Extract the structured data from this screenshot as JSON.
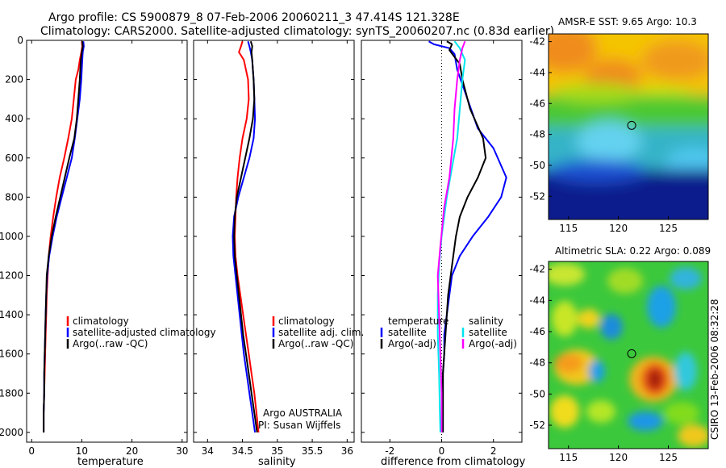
{
  "title_line1": "Argo profile: CS 5900879_8 07-Feb-2006 20060211_3 47.414S 121.328E",
  "title_line2": "Climatology: CARS2000. Satellite-adjusted climatology: synTS_20060207.nc (0.83d earlier)",
  "side_label": "CSIRO 13-Feb-2006 08:32:28",
  "colors": {
    "climatology": "#ff0000",
    "satellite": "#0000ff",
    "argo": "#000000",
    "sat_salinity": "#00e5ee",
    "argo_salinity": "#ff00ff"
  },
  "chart_data": [
    {
      "type": "line",
      "xlabel": "temperature",
      "xlim": [
        -1,
        31
      ],
      "ylim": [
        0,
        2050
      ],
      "y_reversed": true,
      "xticks": [
        0,
        10,
        20,
        30
      ],
      "yticks": [
        0,
        200,
        400,
        600,
        800,
        1000,
        1200,
        1400,
        1600,
        1800,
        2000
      ],
      "legend": [
        "climatology",
        "satellite-adjusted climatology",
        "Argo(..raw -QC)"
      ],
      "series": [
        {
          "name": "climatology",
          "color": "#ff0000",
          "points": [
            [
              10.0,
              5
            ],
            [
              10.1,
              30
            ],
            [
              9.9,
              60
            ],
            [
              9.6,
              100
            ],
            [
              9.3,
              150
            ],
            [
              8.8,
              200
            ],
            [
              8.4,
              300
            ],
            [
              8.0,
              400
            ],
            [
              7.3,
              500
            ],
            [
              6.5,
              600
            ],
            [
              5.6,
              700
            ],
            [
              4.9,
              800
            ],
            [
              4.3,
              900
            ],
            [
              3.8,
              1000
            ],
            [
              3.4,
              1100
            ],
            [
              3.2,
              1200
            ],
            [
              3.0,
              1300
            ],
            [
              2.9,
              1400
            ],
            [
              2.8,
              1500
            ],
            [
              2.7,
              1600
            ],
            [
              2.6,
              1700
            ],
            [
              2.5,
              1800
            ],
            [
              2.4,
              1900
            ],
            [
              2.4,
              2000
            ]
          ]
        },
        {
          "name": "satellite-adjusted climatology",
          "color": "#0000ff",
          "points": [
            [
              10.3,
              5
            ],
            [
              10.4,
              30
            ],
            [
              10.2,
              60
            ],
            [
              10.1,
              100
            ],
            [
              10.0,
              150
            ],
            [
              9.9,
              200
            ],
            [
              9.6,
              300
            ],
            [
              9.1,
              400
            ],
            [
              8.6,
              500
            ],
            [
              8.0,
              600
            ],
            [
              7.0,
              700
            ],
            [
              6.0,
              800
            ],
            [
              5.0,
              900
            ],
            [
              4.2,
              1000
            ],
            [
              3.5,
              1100
            ],
            [
              3.1,
              1200
            ],
            [
              2.9,
              1300
            ],
            [
              2.8,
              1400
            ],
            [
              2.7,
              1500
            ],
            [
              2.6,
              1600
            ],
            [
              2.5,
              1700
            ],
            [
              2.5,
              1800
            ],
            [
              2.4,
              1900
            ],
            [
              2.4,
              2000
            ]
          ]
        },
        {
          "name": "Argo(..raw -QC)",
          "color": "#000000",
          "points": [
            [
              10.1,
              5
            ],
            [
              10.2,
              30
            ],
            [
              10.0,
              60
            ],
            [
              9.8,
              100
            ],
            [
              9.7,
              150
            ],
            [
              9.6,
              200
            ],
            [
              9.3,
              300
            ],
            [
              9.0,
              400
            ],
            [
              8.5,
              500
            ],
            [
              7.5,
              600
            ],
            [
              6.6,
              700
            ],
            [
              5.7,
              800
            ],
            [
              4.8,
              900
            ],
            [
              4.0,
              1000
            ],
            [
              3.4,
              1100
            ],
            [
              3.0,
              1200
            ],
            [
              2.9,
              1300
            ],
            [
              2.8,
              1400
            ],
            [
              2.7,
              1500
            ],
            [
              2.6,
              1600
            ],
            [
              2.5,
              1700
            ],
            [
              2.5,
              1800
            ],
            [
              2.4,
              1900
            ],
            [
              2.4,
              2000
            ]
          ]
        }
      ]
    },
    {
      "type": "line",
      "xlabel": "salinity",
      "xlim": [
        33.8,
        36.1
      ],
      "ylim": [
        0,
        2050
      ],
      "y_reversed": true,
      "xticks": [
        34,
        34.5,
        35,
        35.5,
        36
      ],
      "xticklabels": [
        "34",
        "34.5",
        "35",
        "35.5",
        "36"
      ],
      "legend": [
        "climatology",
        "satellite adj. clim.",
        "Argo(..raw -QC)"
      ],
      "annotations": [
        "Argo AUSTRALIA",
        "PI: Susan Wijffels"
      ],
      "series": [
        {
          "name": "climatology",
          "color": "#ff0000",
          "points": [
            [
              34.5,
              5
            ],
            [
              34.48,
              30
            ],
            [
              34.45,
              60
            ],
            [
              34.52,
              100
            ],
            [
              34.55,
              150
            ],
            [
              34.58,
              200
            ],
            [
              34.59,
              300
            ],
            [
              34.56,
              400
            ],
            [
              34.5,
              500
            ],
            [
              34.46,
              600
            ],
            [
              34.43,
              700
            ],
            [
              34.41,
              800
            ],
            [
              34.4,
              900
            ],
            [
              34.39,
              1000
            ],
            [
              34.4,
              1100
            ],
            [
              34.43,
              1200
            ],
            [
              34.47,
              1300
            ],
            [
              34.51,
              1400
            ],
            [
              34.55,
              1500
            ],
            [
              34.59,
              1600
            ],
            [
              34.63,
              1700
            ],
            [
              34.67,
              1800
            ],
            [
              34.7,
              1900
            ],
            [
              34.73,
              2000
            ]
          ]
        },
        {
          "name": "satellite adj. clim.",
          "color": "#0000ff",
          "points": [
            [
              34.58,
              5
            ],
            [
              34.6,
              30
            ],
            [
              34.62,
              60
            ],
            [
              34.64,
              100
            ],
            [
              34.65,
              150
            ],
            [
              34.66,
              200
            ],
            [
              34.67,
              300
            ],
            [
              34.68,
              400
            ],
            [
              34.66,
              500
            ],
            [
              34.6,
              600
            ],
            [
              34.52,
              700
            ],
            [
              34.44,
              800
            ],
            [
              34.38,
              900
            ],
            [
              34.36,
              1000
            ],
            [
              34.37,
              1100
            ],
            [
              34.4,
              1200
            ],
            [
              34.43,
              1300
            ],
            [
              34.46,
              1400
            ],
            [
              34.49,
              1500
            ],
            [
              34.52,
              1600
            ],
            [
              34.56,
              1700
            ],
            [
              34.6,
              1800
            ],
            [
              34.64,
              1900
            ],
            [
              34.68,
              2000
            ]
          ]
        },
        {
          "name": "Argo(..raw -QC)",
          "color": "#000000",
          "points": [
            [
              34.62,
              5
            ],
            [
              34.64,
              30
            ],
            [
              34.63,
              60
            ],
            [
              34.64,
              100
            ],
            [
              34.65,
              150
            ],
            [
              34.66,
              200
            ],
            [
              34.67,
              300
            ],
            [
              34.65,
              400
            ],
            [
              34.6,
              500
            ],
            [
              34.54,
              600
            ],
            [
              34.48,
              700
            ],
            [
              34.42,
              800
            ],
            [
              34.39,
              900
            ],
            [
              34.38,
              1000
            ],
            [
              34.39,
              1100
            ],
            [
              34.42,
              1200
            ],
            [
              34.45,
              1300
            ],
            [
              34.48,
              1400
            ],
            [
              34.51,
              1500
            ],
            [
              34.55,
              1600
            ],
            [
              34.59,
              1700
            ],
            [
              34.63,
              1800
            ],
            [
              34.67,
              1900
            ],
            [
              34.71,
              2000
            ]
          ]
        }
      ]
    },
    {
      "type": "line",
      "xlabel": "difference from climatology",
      "xlim": [
        -3.1,
        3.1
      ],
      "ylim": [
        0,
        2050
      ],
      "y_reversed": true,
      "xticks": [
        -2,
        0,
        2
      ],
      "zero_line": true,
      "legend_groups": [
        {
          "title": "temperature",
          "items": [
            "satellite",
            "Argo(-adj)"
          ]
        },
        {
          "title": "salinity",
          "items": [
            "satellite",
            "Argo(-adj)"
          ]
        }
      ],
      "series": [
        {
          "name": "temperature satellite",
          "color": "#0000ff",
          "points": [
            [
              -0.5,
              5
            ],
            [
              -0.3,
              20
            ],
            [
              0.3,
              40
            ],
            [
              0.5,
              70
            ],
            [
              0.6,
              150
            ],
            [
              1.0,
              300
            ],
            [
              1.4,
              450
            ],
            [
              2.0,
              550
            ],
            [
              2.5,
              700
            ],
            [
              2.3,
              800
            ],
            [
              1.8,
              900
            ],
            [
              1.2,
              1000
            ],
            [
              0.7,
              1100
            ],
            [
              0.4,
              1200
            ],
            [
              0.3,
              1300
            ],
            [
              0.2,
              1400
            ],
            [
              0.1,
              1500
            ],
            [
              0.1,
              1600
            ],
            [
              0.05,
              1700
            ],
            [
              0.05,
              1800
            ],
            [
              0.05,
              1900
            ],
            [
              0.05,
              2000
            ]
          ]
        },
        {
          "name": "temperature Argo(-adj)",
          "color": "#000000",
          "points": [
            [
              0.2,
              5
            ],
            [
              0.4,
              20
            ],
            [
              0.3,
              50
            ],
            [
              0.7,
              120
            ],
            [
              0.8,
              200
            ],
            [
              1.1,
              350
            ],
            [
              1.6,
              500
            ],
            [
              1.7,
              600
            ],
            [
              1.4,
              700
            ],
            [
              1.0,
              800
            ],
            [
              0.7,
              900
            ],
            [
              0.55,
              1000
            ],
            [
              0.45,
              1100
            ],
            [
              0.35,
              1200
            ],
            [
              0.25,
              1300
            ],
            [
              0.2,
              1400
            ],
            [
              0.15,
              1500
            ],
            [
              0.1,
              1600
            ],
            [
              0.05,
              1700
            ],
            [
              0.05,
              1800
            ],
            [
              0.05,
              1900
            ],
            [
              0.05,
              2000
            ]
          ]
        },
        {
          "name": "salinity satellite",
          "color": "#00e5ee",
          "points": [
            [
              0.5,
              5
            ],
            [
              0.7,
              40
            ],
            [
              0.9,
              100
            ],
            [
              0.8,
              200
            ],
            [
              0.7,
              350
            ],
            [
              0.6,
              500
            ],
            [
              0.4,
              650
            ],
            [
              0.2,
              800
            ],
            [
              0.0,
              1000
            ],
            [
              -0.1,
              1150
            ],
            [
              -0.15,
              1300
            ],
            [
              -0.15,
              1500
            ],
            [
              -0.1,
              1700
            ],
            [
              -0.07,
              1900
            ],
            [
              -0.05,
              2000
            ]
          ]
        },
        {
          "name": "salinity Argo(-adj)",
          "color": "#ff00ff",
          "points": [
            [
              0.9,
              5
            ],
            [
              0.8,
              40
            ],
            [
              0.7,
              100
            ],
            [
              0.6,
              200
            ],
            [
              0.5,
              350
            ],
            [
              0.45,
              500
            ],
            [
              0.3,
              700
            ],
            [
              0.1,
              850
            ],
            [
              -0.05,
              1050
            ],
            [
              -0.15,
              1200
            ],
            [
              -0.1,
              1400
            ],
            [
              -0.05,
              1600
            ],
            [
              0.0,
              1800
            ],
            [
              0.0,
              2000
            ]
          ]
        }
      ]
    },
    {
      "type": "heatmap",
      "title": "AMSR-E SST: 9.65 Argo: 10.3",
      "xlim": [
        113,
        129
      ],
      "ylim": [
        -53.5,
        -41.5
      ],
      "xticks": [
        115,
        120,
        125
      ],
      "yticks": [
        -42,
        -44,
        -46,
        -48,
        -50,
        -52
      ],
      "marker": [
        121.328,
        -47.414
      ]
    },
    {
      "type": "heatmap",
      "title": "Altimetric SLA: 0.22 Argo: 0.089",
      "xlim": [
        113,
        129
      ],
      "ylim": [
        -53.5,
        -41.5
      ],
      "xticks": [
        115,
        120,
        125
      ],
      "yticks": [
        -42,
        -44,
        -46,
        -48,
        -50,
        -52
      ],
      "marker": [
        121.328,
        -47.414
      ]
    }
  ]
}
